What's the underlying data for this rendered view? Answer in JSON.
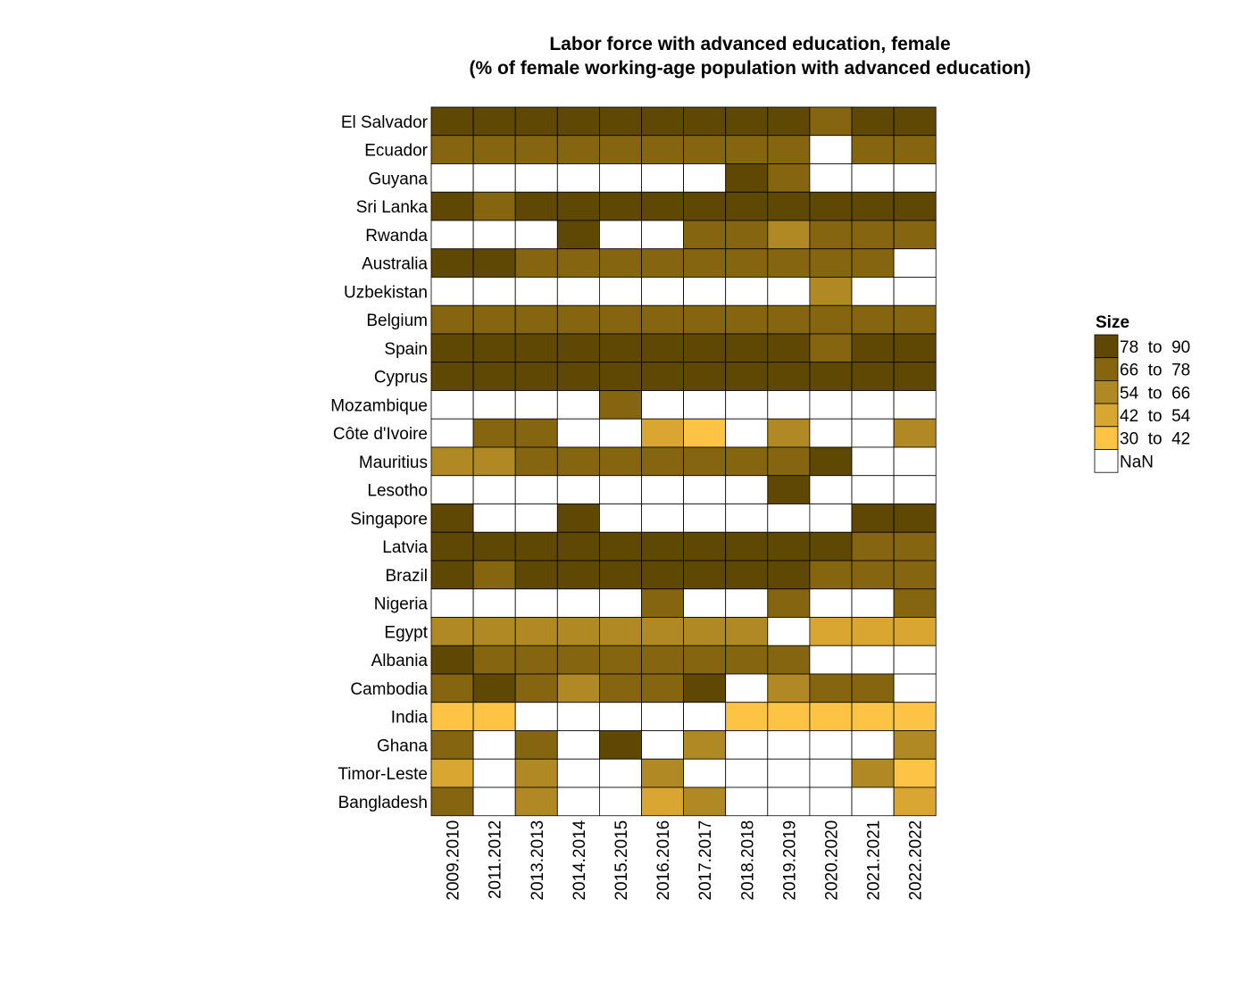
{
  "chart_data": {
    "type": "heatmap",
    "title": "Labor force with advanced education, female",
    "subtitle": "(% of female working-age population with advanced education)",
    "x": [
      "2009.2010",
      "2011.2012",
      "2013.2013",
      "2014.2014",
      "2015.2015",
      "2016.2016",
      "2017.2017",
      "2018.2018",
      "2019.2019",
      "2020.2020",
      "2021.2021",
      "2022.2022"
    ],
    "y": [
      "El Salvador",
      "Ecuador",
      "Guyana",
      "Sri Lanka",
      "Rwanda",
      "Australia",
      "Uzbekistan",
      "Belgium",
      "Spain",
      "Cyprus",
      "Mozambique",
      "Côte d'Ivoire",
      "Mauritius",
      "Lesotho",
      "Singapore",
      "Latvia",
      "Brazil",
      "Nigeria",
      "Egypt",
      "Albania",
      "Cambodia",
      "India",
      "Ghana",
      "Timor-Leste",
      "Bangladesh"
    ],
    "values": [
      [
        80,
        80,
        80,
        80,
        80,
        80,
        80,
        80,
        80,
        72,
        80,
        80
      ],
      [
        72,
        72,
        72,
        72,
        72,
        72,
        72,
        72,
        72,
        null,
        72,
        72
      ],
      [
        null,
        null,
        null,
        null,
        null,
        null,
        null,
        80,
        72,
        null,
        null,
        null
      ],
      [
        80,
        72,
        80,
        80,
        80,
        80,
        80,
        80,
        80,
        80,
        80,
        80
      ],
      [
        null,
        null,
        null,
        80,
        null,
        null,
        72,
        72,
        60,
        72,
        72,
        72
      ],
      [
        80,
        80,
        72,
        72,
        72,
        72,
        72,
        72,
        72,
        72,
        72,
        null
      ],
      [
        null,
        null,
        null,
        null,
        null,
        null,
        null,
        null,
        null,
        60,
        null,
        null
      ],
      [
        72,
        72,
        72,
        72,
        72,
        72,
        72,
        72,
        72,
        72,
        72,
        72
      ],
      [
        80,
        80,
        80,
        80,
        80,
        80,
        80,
        80,
        80,
        72,
        80,
        80
      ],
      [
        80,
        80,
        80,
        80,
        80,
        80,
        80,
        80,
        80,
        80,
        80,
        80
      ],
      [
        null,
        null,
        null,
        null,
        72,
        null,
        null,
        null,
        null,
        null,
        null,
        null
      ],
      [
        null,
        72,
        72,
        null,
        null,
        48,
        36,
        null,
        60,
        null,
        null,
        60
      ],
      [
        60,
        60,
        72,
        72,
        72,
        72,
        72,
        72,
        72,
        80,
        null,
        null
      ],
      [
        null,
        null,
        null,
        null,
        null,
        null,
        null,
        null,
        80,
        null,
        null,
        null
      ],
      [
        80,
        null,
        null,
        80,
        null,
        null,
        null,
        null,
        null,
        null,
        80,
        80
      ],
      [
        80,
        80,
        80,
        80,
        80,
        80,
        80,
        80,
        80,
        80,
        72,
        72
      ],
      [
        80,
        72,
        80,
        80,
        80,
        80,
        80,
        80,
        80,
        72,
        72,
        72
      ],
      [
        null,
        null,
        null,
        null,
        null,
        72,
        null,
        null,
        72,
        null,
        null,
        72
      ],
      [
        60,
        60,
        60,
        60,
        60,
        60,
        60,
        60,
        null,
        48,
        48,
        48
      ],
      [
        80,
        72,
        72,
        72,
        72,
        72,
        72,
        72,
        72,
        null,
        null,
        null
      ],
      [
        72,
        80,
        72,
        60,
        72,
        72,
        80,
        null,
        60,
        72,
        72,
        null
      ],
      [
        36,
        36,
        null,
        null,
        null,
        null,
        null,
        36,
        36,
        36,
        36,
        36
      ],
      [
        72,
        null,
        72,
        null,
        80,
        null,
        60,
        null,
        null,
        null,
        null,
        60
      ],
      [
        48,
        null,
        60,
        null,
        null,
        60,
        null,
        null,
        null,
        null,
        60,
        36
      ],
      [
        72,
        null,
        60,
        null,
        null,
        48,
        60,
        null,
        null,
        null,
        null,
        48
      ]
    ],
    "legend": {
      "title": "Size",
      "position": "right",
      "bins": [
        {
          "label": "78  to  90",
          "min": 78,
          "max": 90,
          "color": "#5e4804"
        },
        {
          "label": "66  to  78",
          "min": 66,
          "max": 78,
          "color": "#866511"
        },
        {
          "label": "54  to  66",
          "min": 54,
          "max": 66,
          "color": "#b08924"
        },
        {
          "label": "42  to  54",
          "min": 42,
          "max": 54,
          "color": "#d9a632"
        },
        {
          "label": "30  to  42",
          "min": 30,
          "max": 42,
          "color": "#fdc344"
        },
        {
          "label": "NaN",
          "min": null,
          "max": null,
          "color": "#ffffff"
        }
      ]
    },
    "grid": false
  }
}
